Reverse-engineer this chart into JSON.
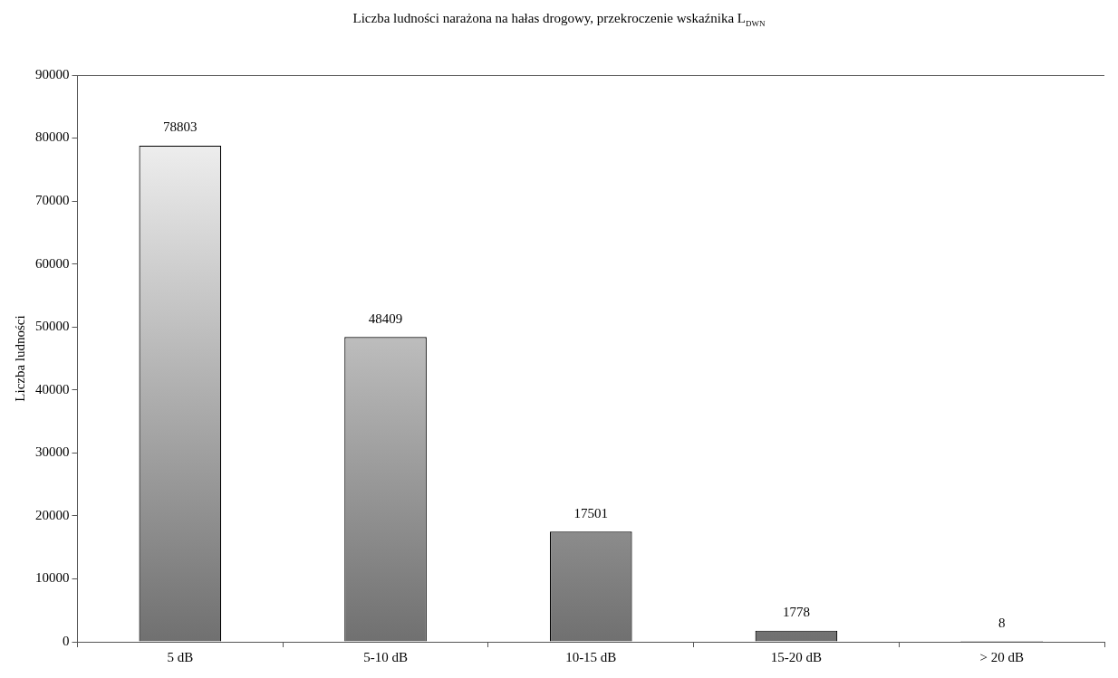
{
  "chart_data": {
    "type": "bar",
    "title": "Liczba ludności narażona na hałas drogowy, przekroczenie wskaźnika L$_{DWN}$",
    "ylabel": "Liczba ludności",
    "categories": [
      "5 dB",
      "5-10 dB",
      "10-15 dB",
      "15-20 dB",
      "> 20 dB"
    ],
    "values": [
      78803,
      48409,
      17501,
      1778,
      8
    ],
    "color": "#707070",
    "ylim": [
      0,
      90000
    ],
    "yticks": [
      0,
      10000,
      20000,
      30000,
      40000,
      50000,
      60000,
      70000,
      80000,
      90000
    ],
    "grid": false,
    "legend": false,
    "data_labels": true
  }
}
